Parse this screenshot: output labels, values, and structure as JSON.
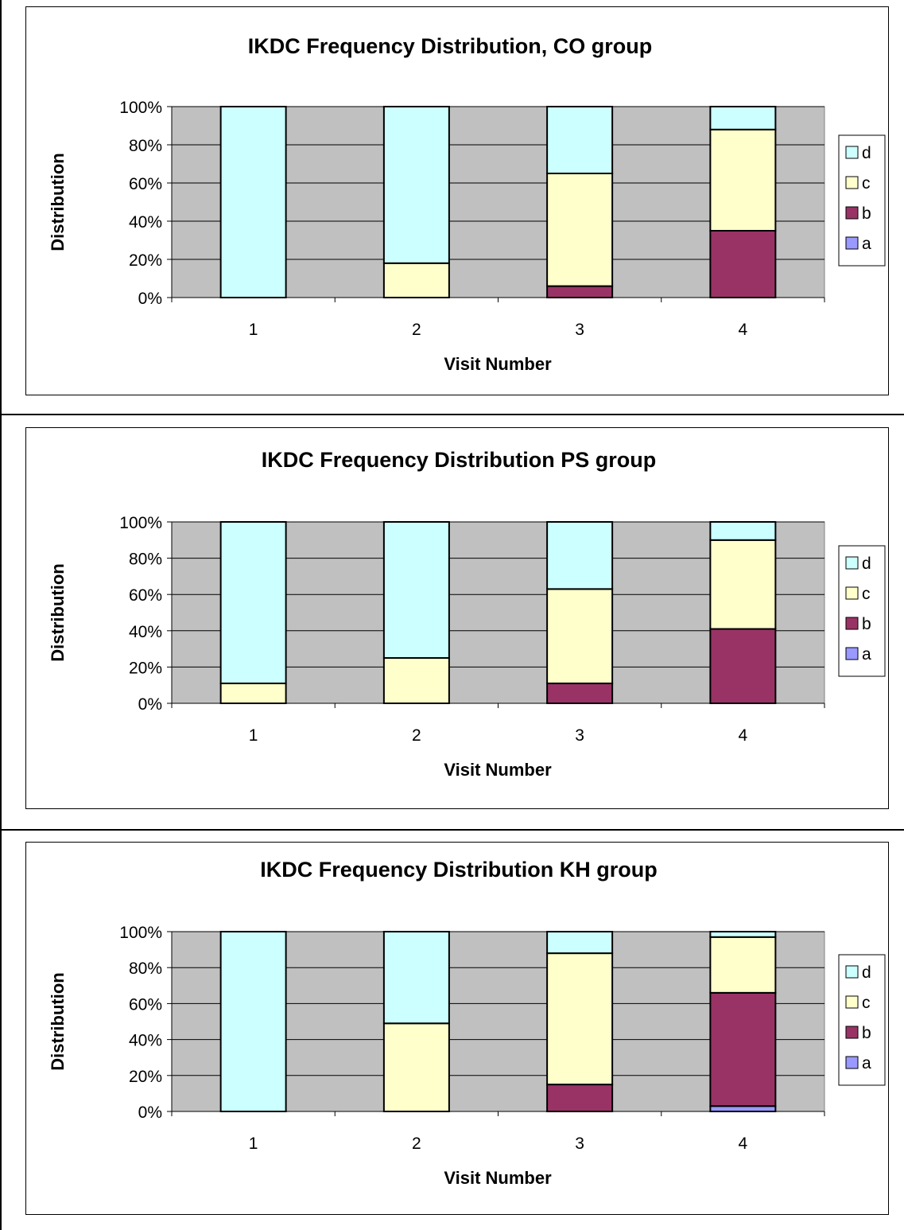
{
  "chart_data": [
    {
      "type": "bar",
      "stacked": true,
      "title": "IKDC Frequency Distribution,  CO group",
      "xlabel": "Visit Number",
      "ylabel": "Distribution",
      "categories": [
        "1",
        "2",
        "3",
        "4"
      ],
      "ylim": [
        0,
        100
      ],
      "yticks": [
        "0%",
        "20%",
        "40%",
        "60%",
        "80%",
        "100%"
      ],
      "grid": true,
      "legend_position": "right",
      "series": [
        {
          "name": "a",
          "color": "#9999ff",
          "values": [
            0,
            0,
            0,
            0
          ]
        },
        {
          "name": "b",
          "color": "#993366",
          "values": [
            0,
            0,
            6,
            35
          ]
        },
        {
          "name": "c",
          "color": "#ffffcc",
          "values": [
            0,
            18,
            59,
            53
          ]
        },
        {
          "name": "d",
          "color": "#ccffff",
          "values": [
            100,
            82,
            35,
            12
          ]
        }
      ]
    },
    {
      "type": "bar",
      "stacked": true,
      "title": "IKDC Frequency Distribution PS  group",
      "xlabel": "Visit Number",
      "ylabel": "Distribution",
      "categories": [
        "1",
        "2",
        "3",
        "4"
      ],
      "ylim": [
        0,
        100
      ],
      "yticks": [
        "0%",
        "20%",
        "40%",
        "60%",
        "80%",
        "100%"
      ],
      "grid": true,
      "legend_position": "right",
      "series": [
        {
          "name": "a",
          "color": "#9999ff",
          "values": [
            0,
            0,
            0,
            0
          ]
        },
        {
          "name": "b",
          "color": "#993366",
          "values": [
            0,
            0,
            11,
            41
          ]
        },
        {
          "name": "c",
          "color": "#ffffcc",
          "values": [
            11,
            25,
            52,
            49
          ]
        },
        {
          "name": "d",
          "color": "#ccffff",
          "values": [
            89,
            75,
            37,
            10
          ]
        }
      ]
    },
    {
      "type": "bar",
      "stacked": true,
      "title": "IKDC Frequency Distribution KH group",
      "xlabel": "Visit Number",
      "ylabel": "Distribution",
      "categories": [
        "1",
        "2",
        "3",
        "4"
      ],
      "ylim": [
        0,
        100
      ],
      "yticks": [
        "0%",
        "20%",
        "40%",
        "60%",
        "80%",
        "100%"
      ],
      "grid": true,
      "legend_position": "right",
      "series": [
        {
          "name": "a",
          "color": "#9999ff",
          "values": [
            0,
            0,
            0,
            3
          ]
        },
        {
          "name": "b",
          "color": "#993366",
          "values": [
            0,
            0,
            15,
            63
          ]
        },
        {
          "name": "c",
          "color": "#ffffcc",
          "values": [
            0,
            49,
            73,
            31
          ]
        },
        {
          "name": "d",
          "color": "#ccffff",
          "values": [
            100,
            51,
            12,
            3
          ]
        }
      ]
    }
  ]
}
